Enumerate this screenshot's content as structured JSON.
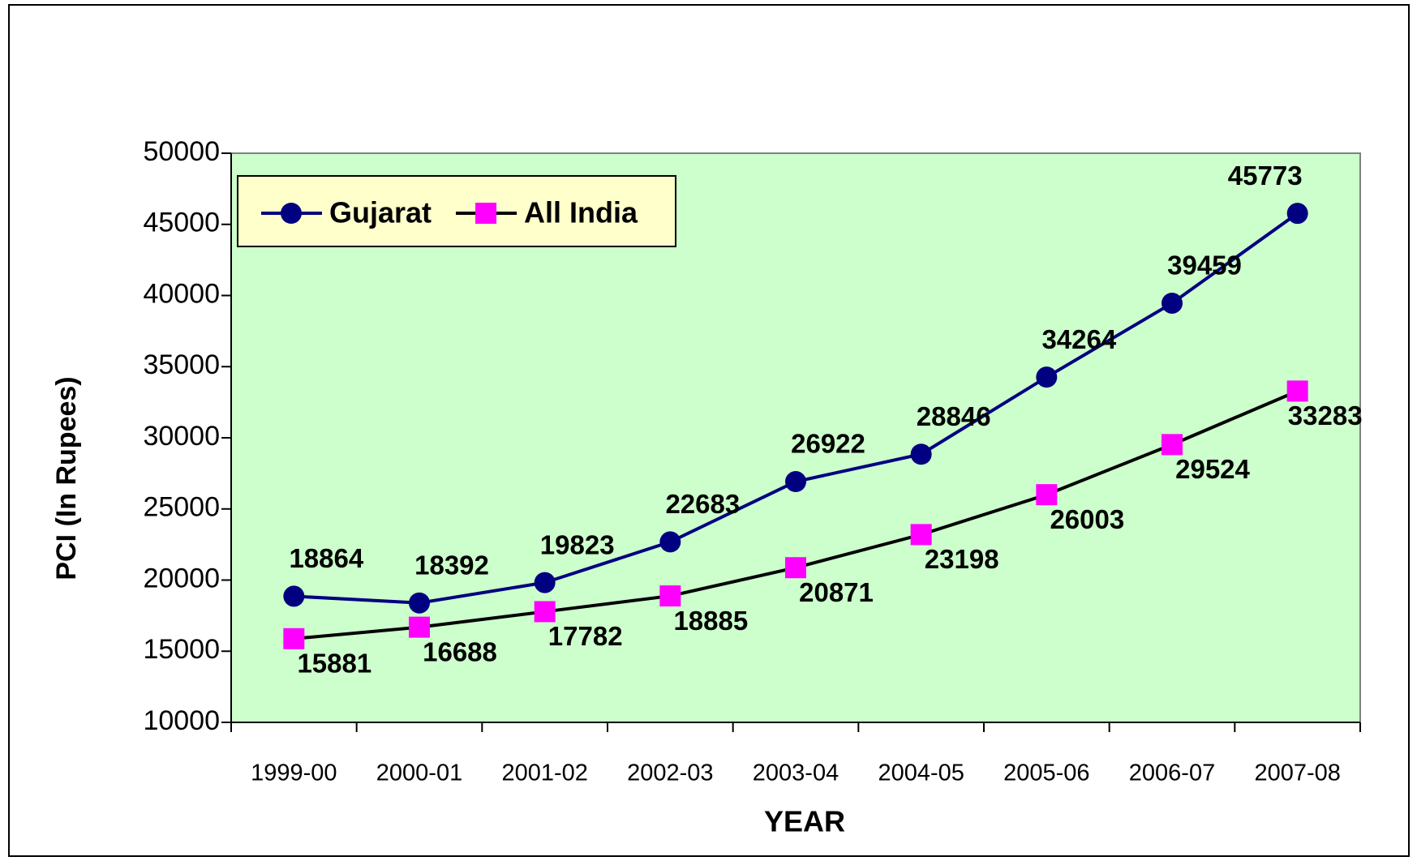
{
  "chart_data": {
    "type": "line",
    "x_label": "YEAR",
    "y_label": "PCI (In Rupees)",
    "categories": [
      "1999-00",
      "2000-01",
      "2001-02",
      "2002-03",
      "2003-04",
      "2004-05",
      "2005-06",
      "2006-07",
      "2007-08"
    ],
    "series": [
      {
        "name": "Gujarat",
        "color": "#000080",
        "marker_color": "#000080",
        "marker": "circle",
        "values": [
          18864,
          18392,
          19823,
          22683,
          26922,
          28846,
          34264,
          39459,
          45773
        ]
      },
      {
        "name": "All India",
        "color": "#000000",
        "marker_color": "#ff00ff",
        "marker": "square",
        "values": [
          15881,
          16688,
          17782,
          18885,
          20871,
          23198,
          26003,
          29524,
          33283
        ]
      }
    ],
    "ylim": [
      10000,
      50000
    ],
    "yticks": [
      10000,
      15000,
      20000,
      25000,
      30000,
      35000,
      40000,
      45000,
      50000
    ],
    "plot_background": "#ccffcc",
    "legend": "upper left",
    "grid": false
  }
}
